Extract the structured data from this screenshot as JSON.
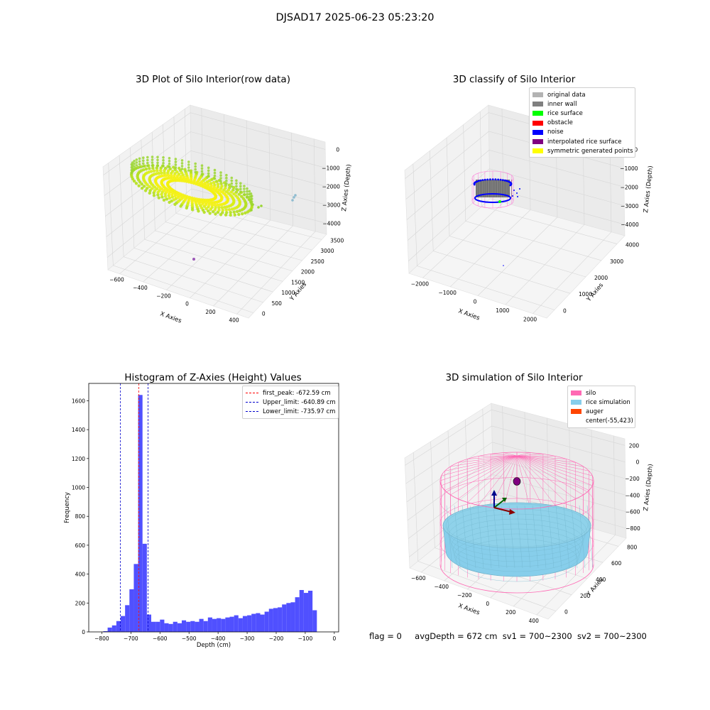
{
  "figure": {
    "title": "DJSAD17 2025-06-23 05:23:20",
    "footer": {
      "flag": "flag = 0",
      "avg_depth": "avgDepth = 672 cm",
      "sv1": "sv1 = 700~2300",
      "sv2": "sv2 = 700~2300"
    }
  },
  "colors": {
    "original": "#b3b3b3",
    "inner_wall": "#808080",
    "rice_surface": "#00ff00",
    "obstacle": "#ff0000",
    "noise": "#0000ff",
    "interp": "#800080",
    "symmetric": "#ffff00",
    "silo": "#ff69b4",
    "rice_sim": "#87ceeb",
    "auger": "#ff4500",
    "hist_bar": "#5050ff",
    "peak_line": "#ff0000",
    "limit_line": "#0000cc"
  },
  "panel_raw": {
    "title": "3D Plot of Silo Interior(row data)",
    "xlabel": "X Axies",
    "ylabel": "Y Axies",
    "zlabel": "Z Axies (Depth)",
    "xticks": [
      "−600",
      "−400",
      "−200",
      "0",
      "200",
      "400"
    ],
    "yticks": [
      "0",
      "500",
      "1000",
      "1500",
      "2000",
      "2500",
      "3000",
      "3500"
    ],
    "zticks": [
      "0",
      "−1000",
      "−2000",
      "−3000",
      "−4000"
    ]
  },
  "panel_classify": {
    "title": "3D classify of Silo Interior",
    "xlabel": "X Axies",
    "ylabel": "Y Axies",
    "zlabel": "Z Axies (Depth)",
    "xticks": [
      "−2000",
      "−1000",
      "0",
      "1000",
      "2000"
    ],
    "yticks": [
      "0",
      "1000",
      "2000",
      "3000",
      "4000"
    ],
    "zticks": [
      "0",
      "−1000",
      "−2000",
      "−3000",
      "−4000"
    ],
    "legend": [
      {
        "label": "original data",
        "color": "#b3b3b3"
      },
      {
        "label": "inner wall",
        "color": "#808080"
      },
      {
        "label": "rice surface",
        "color": "#00ff00"
      },
      {
        "label": "obstacle",
        "color": "#ff0000"
      },
      {
        "label": "noise",
        "color": "#0000ff"
      },
      {
        "label": "interpolated rice surface",
        "color": "#800080"
      },
      {
        "label": "symmetric generated points",
        "color": "#ffff00"
      }
    ]
  },
  "panel_sim": {
    "title": "3D simulation of Silo Interior",
    "xlabel": "X Axies",
    "ylabel": "Y Axies",
    "zlabel": "Z Axies (Depth)",
    "xticks": [
      "−600",
      "−400",
      "−200",
      "0",
      "200",
      "400"
    ],
    "yticks": [
      "0",
      "200",
      "400",
      "600",
      "800"
    ],
    "zticks": [
      "200",
      "0",
      "−200",
      "−400",
      "−600",
      "−800"
    ],
    "legend": [
      {
        "label": "silo",
        "color": "#ff69b4"
      },
      {
        "label": "rice simulation",
        "color": "#87ceeb"
      },
      {
        "label": "auger",
        "color": "#ff4500"
      },
      {
        "label": "center(-55,423)",
        "color": ""
      }
    ]
  },
  "chart_data": {
    "type": "bar",
    "title": "Histogram of Z-Axies (Height) Values",
    "xlabel": "Depth (cm)",
    "ylabel": "Frequency",
    "xlim": [
      -845,
      15
    ],
    "ylim": [
      0,
      1720
    ],
    "xticks": [
      -800,
      -700,
      -600,
      -500,
      -400,
      -300,
      -200,
      -100,
      0
    ],
    "xtick_labels": [
      "−800",
      "−700",
      "−600",
      "−500",
      "−400",
      "−300",
      "−200",
      "−100",
      "0"
    ],
    "yticks": [
      0,
      200,
      400,
      600,
      800,
      1000,
      1200,
      1400,
      1600
    ],
    "bin_width": 15,
    "bin_starts": [
      -795,
      -780,
      -765,
      -750,
      -735,
      -720,
      -705,
      -690,
      -675,
      -660,
      -645,
      -630,
      -615,
      -600,
      -585,
      -570,
      -555,
      -540,
      -525,
      -510,
      -495,
      -480,
      -465,
      -450,
      -435,
      -420,
      -405,
      -390,
      -375,
      -360,
      -345,
      -330,
      -315,
      -300,
      -285,
      -270,
      -255,
      -240,
      -225,
      -210,
      -195,
      -180,
      -165,
      -150,
      -135,
      -120,
      -105,
      -90,
      -75,
      -60,
      -45
    ],
    "values": [
      5,
      30,
      45,
      75,
      110,
      185,
      295,
      470,
      1640,
      610,
      120,
      70,
      70,
      85,
      60,
      55,
      70,
      60,
      80,
      70,
      75,
      70,
      90,
      75,
      100,
      90,
      95,
      90,
      100,
      105,
      115,
      95,
      110,
      115,
      125,
      130,
      120,
      140,
      160,
      165,
      170,
      190,
      200,
      205,
      240,
      290,
      270,
      285,
      150,
      0,
      0
    ],
    "lines": [
      {
        "name": "first_peak: -672.59 cm",
        "x": -672.59,
        "color": "#ff0000"
      },
      {
        "name": "Upper_limit: -640.89 cm",
        "x": -640.89,
        "color": "#0000cc"
      },
      {
        "name": "Lower_limit: -735.97 cm",
        "x": -735.97,
        "color": "#0000cc"
      }
    ]
  }
}
